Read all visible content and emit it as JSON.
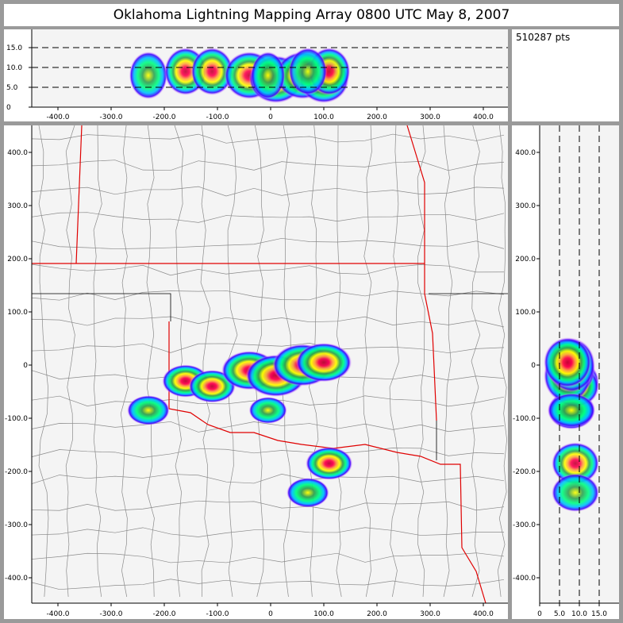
{
  "title": "Oklahoma Lightning Mapping Array   0800 UTC  May 8, 2007",
  "point_count": "510287 pts",
  "colors": {
    "background": "#9a9a9a",
    "plot_bg": "#f4f4f4",
    "state_border": "#e00000",
    "county_line": "#8a8a8a",
    "density_scale": [
      "#ffb0ff",
      "#8000ff",
      "#0000ff",
      "#00c0ff",
      "#00ff80",
      "#208040",
      "#ffff00",
      "#ffa040",
      "#ff0040",
      "#c00020"
    ]
  },
  "chart_data": [
    {
      "type": "heatmap",
      "panel": "altitude-vs-east",
      "xlim": [
        -450,
        450
      ],
      "ylim": [
        0,
        19.6
      ],
      "x_ticks": [
        "-400.0",
        "-300.0",
        "-200.0",
        "-100.0",
        "0",
        "100.0",
        "200.0",
        "300.0",
        "400.0"
      ],
      "y_ticks": [
        "0",
        "5.0",
        "10.0",
        "15.0"
      ],
      "gridlines_y": [
        5,
        10,
        15
      ]
    },
    {
      "type": "heatmap",
      "panel": "plan-view-map",
      "xlim": [
        -450,
        446
      ],
      "ylim": [
        -450,
        448
      ],
      "x_ticks": [
        "-400.0",
        "-300.0",
        "-200.0",
        "-100.0",
        "0",
        "100.0",
        "200.0",
        "300.0",
        "400.0"
      ],
      "y_ticks": [
        "-400.0",
        "-300.0",
        "-200.0",
        "-100.0",
        "0",
        "100.0",
        "200.0",
        "300.0",
        "400.0"
      ],
      "clusters": [
        {
          "x": -230,
          "y": -85,
          "z": 8,
          "intensity": 0.6
        },
        {
          "x": -160,
          "y": -30,
          "z": 9,
          "intensity": 0.7
        },
        {
          "x": -110,
          "y": -40,
          "z": 9,
          "intensity": 0.7
        },
        {
          "x": -40,
          "y": -10,
          "z": 8,
          "intensity": 0.9
        },
        {
          "x": 10,
          "y": -20,
          "z": 7,
          "intensity": 1.0
        },
        {
          "x": 60,
          "y": 0,
          "z": 8,
          "intensity": 1.0
        },
        {
          "x": 100,
          "y": 5,
          "z": 7,
          "intensity": 0.9
        },
        {
          "x": 110,
          "y": -185,
          "z": 9,
          "intensity": 0.7
        },
        {
          "x": 70,
          "y": -240,
          "z": 9,
          "intensity": 0.6
        },
        {
          "x": -5,
          "y": -85,
          "z": 8,
          "intensity": 0.5
        }
      ]
    },
    {
      "type": "heatmap",
      "panel": "north-vs-altitude",
      "xlim": [
        0,
        20
      ],
      "ylim": [
        -450,
        448
      ],
      "x_ticks": [
        "0",
        "5.0",
        "10.0",
        "15.0"
      ],
      "y_ticks": [
        "-400.0",
        "-300.0",
        "-200.0",
        "-100.0",
        "0",
        "100.0",
        "200.0",
        "300.0",
        "400.0"
      ],
      "gridlines_x": [
        5,
        10,
        15
      ]
    }
  ]
}
